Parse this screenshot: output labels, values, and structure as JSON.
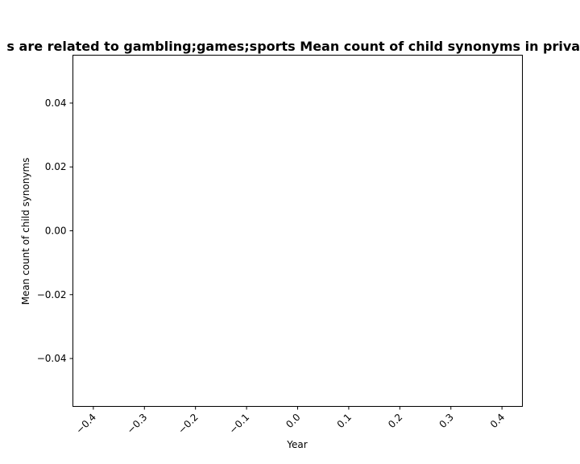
{
  "chart_data": {
    "type": "line",
    "title": "Mean count of child synonyms in privacy policies of apps which are related to gambling;games;sports Mean count of child synonyms in privacy policies of apps which are related to gambling;games;sports",
    "title_visible": "s are related to gambling;games;sports Mean count of child synonyms in privac",
    "xlabel": "Year",
    "ylabel": "Mean count of child synonyms",
    "xlim": [
      -0.44,
      0.44
    ],
    "ylim": [
      -0.055,
      0.055
    ],
    "x_ticks": [
      -0.4,
      -0.3,
      -0.2,
      -0.1,
      0.0,
      0.1,
      0.2,
      0.3,
      0.4
    ],
    "x_tick_labels": [
      "−0.4",
      "−0.3",
      "−0.2",
      "−0.1",
      "0.0",
      "0.1",
      "0.2",
      "0.3",
      "0.4"
    ],
    "y_ticks": [
      0.04,
      0.02,
      0.0,
      -0.02,
      -0.04
    ],
    "y_tick_labels": [
      "0.04",
      "0.02",
      "0.00",
      "−0.02",
      "−0.04"
    ],
    "series": [],
    "grid": false,
    "legend": "none"
  }
}
